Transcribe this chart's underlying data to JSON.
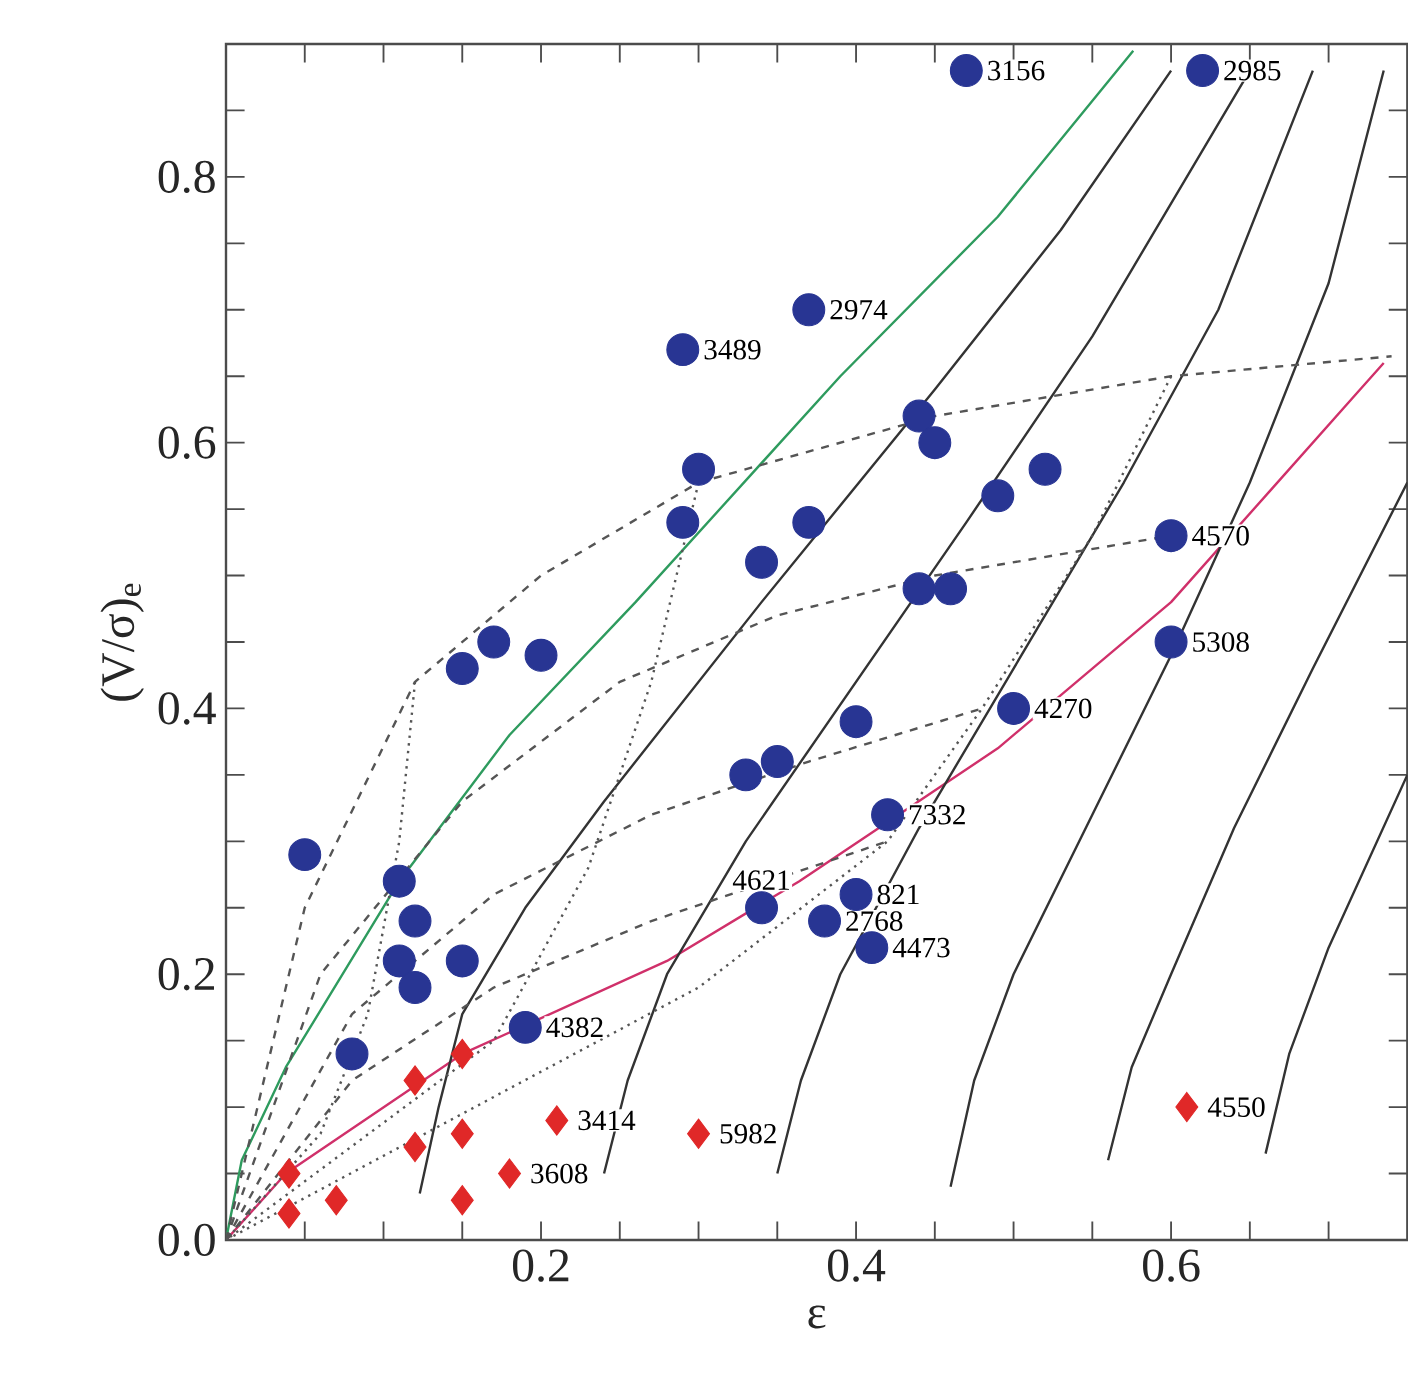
{
  "chart_data": {
    "type": "scatter",
    "xlabel": "ε",
    "ylabel": "(V/σ)$_{e}$",
    "xlim": [
      0,
      0.75
    ],
    "ylim": [
      0,
      0.9
    ],
    "grid": false,
    "xticks": [
      {
        "value": 0.05,
        "label": null
      },
      {
        "value": 0.1,
        "label": null
      },
      {
        "value": 0.15,
        "label": null
      },
      0.2,
      {
        "value": 0.25,
        "label": null
      },
      {
        "value": 0.3,
        "label": null
      },
      {
        "value": 0.35,
        "label": null
      },
      0.4,
      {
        "value": 0.45,
        "label": null
      },
      {
        "value": 0.5,
        "label": null
      },
      {
        "value": 0.55,
        "label": null
      },
      0.6,
      {
        "value": 0.65,
        "label": null
      },
      {
        "value": 0.7,
        "label": null
      }
    ],
    "yticks": [
      {
        "value": 0,
        "label": "0.0"
      },
      {
        "value": 0.05,
        "label": null
      },
      {
        "value": 0.1,
        "label": null
      },
      {
        "value": 0.15,
        "label": null
      },
      0.2,
      {
        "value": 0.25,
        "label": null
      },
      {
        "value": 0.3,
        "label": null
      },
      {
        "value": 0.35,
        "label": null
      },
      0.4,
      {
        "value": 0.45,
        "label": null
      },
      {
        "value": 0.5,
        "label": null
      },
      {
        "value": 0.55,
        "label": null
      },
      0.6,
      {
        "value": 0.65,
        "label": null
      },
      {
        "value": 0.7,
        "label": null
      },
      {
        "value": 0.75,
        "label": null
      },
      0.8,
      {
        "value": 0.85,
        "label": null
      }
    ],
    "series": [
      {
        "type": "line",
        "color": "#2e9b5e",
        "line_style": "solid",
        "marker": "none",
        "x": [
          0,
          0.01,
          0.038,
          0.11,
          0.18,
          0.26,
          0.39,
          0.49,
          0.576
        ],
        "values": [
          0,
          0.06,
          0.13,
          0.27,
          0.38,
          0.48,
          0.65,
          0.77,
          0.895
        ]
      },
      {
        "type": "line",
        "color": "#d0306a",
        "line_style": "solid",
        "marker": "none",
        "x": [
          0,
          0.038,
          0.15,
          0.28,
          0.364,
          0.49,
          0.6,
          0.72,
          0.735
        ],
        "values": [
          0,
          0.05,
          0.14,
          0.21,
          0.27,
          0.37,
          0.48,
          0.64,
          0.66
        ]
      },
      {
        "type": "line",
        "color": "#333333",
        "line_style": "solid",
        "marker": "none",
        "x": [
          0.123,
          0.135,
          0.15,
          0.19,
          0.24,
          0.34,
          0.45,
          0.53,
          0.6
        ],
        "values": [
          0.035,
          0.1,
          0.17,
          0.25,
          0.33,
          0.48,
          0.64,
          0.76,
          0.88
        ]
      },
      {
        "type": "line",
        "color": "#333333",
        "line_style": "solid",
        "marker": "none",
        "x": [
          0.24,
          0.255,
          0.28,
          0.33,
          0.4,
          0.47,
          0.55,
          0.65
        ],
        "values": [
          0.05,
          0.12,
          0.2,
          0.3,
          0.42,
          0.54,
          0.68,
          0.88
        ]
      },
      {
        "type": "line",
        "color": "#333333",
        "line_style": "solid",
        "marker": "none",
        "x": [
          0.35,
          0.365,
          0.39,
          0.44,
          0.5,
          0.57,
          0.63,
          0.69
        ],
        "values": [
          0.05,
          0.12,
          0.2,
          0.31,
          0.43,
          0.57,
          0.7,
          0.88
        ]
      },
      {
        "type": "line",
        "color": "#333333",
        "line_style": "solid",
        "marker": "none",
        "x": [
          0.46,
          0.475,
          0.5,
          0.55,
          0.6,
          0.65,
          0.7,
          0.735
        ],
        "values": [
          0.04,
          0.12,
          0.2,
          0.32,
          0.44,
          0.57,
          0.72,
          0.88
        ]
      },
      {
        "type": "line",
        "color": "#333333",
        "line_style": "solid",
        "marker": "none",
        "x": [
          0.56,
          0.575,
          0.6,
          0.64,
          0.69,
          0.75
        ],
        "values": [
          0.06,
          0.13,
          0.2,
          0.31,
          0.43,
          0.57
        ]
      },
      {
        "type": "line",
        "color": "#333333",
        "line_style": "solid",
        "marker": "none",
        "x": [
          0.66,
          0.675,
          0.7,
          0.75
        ],
        "values": [
          0.065,
          0.14,
          0.22,
          0.35
        ]
      },
      {
        "type": "line",
        "color": "#555555",
        "line_style": "dashed",
        "marker": "none",
        "x": [
          0,
          0.05,
          0.12,
          0.2,
          0.3,
          0.45,
          0.6,
          0.74
        ],
        "values": [
          0,
          0.25,
          0.42,
          0.5,
          0.57,
          0.62,
          0.65,
          0.665
        ]
      },
      {
        "type": "line",
        "color": "#555555",
        "line_style": "dashed",
        "marker": "none",
        "x": [
          0,
          0.06,
          0.15,
          0.25,
          0.35,
          0.45,
          0.6
        ],
        "values": [
          0,
          0.2,
          0.33,
          0.42,
          0.47,
          0.5,
          0.53
        ]
      },
      {
        "type": "line",
        "color": "#555555",
        "line_style": "dashed",
        "marker": "none",
        "x": [
          0,
          0.08,
          0.17,
          0.27,
          0.37,
          0.48
        ],
        "values": [
          0,
          0.17,
          0.26,
          0.32,
          0.36,
          0.4
        ]
      },
      {
        "type": "line",
        "color": "#555555",
        "line_style": "dashed",
        "marker": "none",
        "x": [
          0,
          0.08,
          0.17,
          0.27,
          0.37,
          0.42
        ],
        "values": [
          0,
          0.12,
          0.19,
          0.24,
          0.28,
          0.3
        ]
      },
      {
        "type": "line",
        "color": "#555555",
        "line_style": "dotted",
        "marker": "none",
        "x": [
          0.12,
          0.11,
          0.09,
          0.06,
          0
        ],
        "values": [
          0.42,
          0.3,
          0.17,
          0.08,
          0
        ]
      },
      {
        "type": "line",
        "color": "#555555",
        "line_style": "dotted",
        "marker": "none",
        "x": [
          0.3,
          0.27,
          0.23,
          0.17,
          0
        ],
        "values": [
          0.57,
          0.42,
          0.28,
          0.15,
          0
        ]
      },
      {
        "type": "line",
        "color": "#555555",
        "line_style": "dotted",
        "marker": "none",
        "x": [
          0.6,
          0.55,
          0.48,
          0.42,
          0.3,
          0
        ],
        "values": [
          0.65,
          0.53,
          0.4,
          0.3,
          0.19,
          0
        ]
      },
      {
        "color": "#283593",
        "marker": "circle",
        "x": [
          0.47,
          0.62,
          0.37,
          0.29,
          0.44,
          0.45,
          0.3,
          0.29,
          0.37,
          0.49,
          0.52,
          0.34,
          0.44,
          0.46,
          0.6,
          0.6,
          0.17,
          0.15,
          0.2,
          0.5,
          0.4,
          0.33,
          0.35,
          0.42,
          0.05,
          0.11,
          0.12,
          0.34,
          0.4,
          0.38,
          0.41,
          0.11,
          0.12,
          0.15,
          0.19,
          0.08
        ],
        "values": [
          0.88,
          0.88,
          0.7,
          0.67,
          0.62,
          0.6,
          0.58,
          0.54,
          0.54,
          0.56,
          0.58,
          0.51,
          0.49,
          0.49,
          0.53,
          0.45,
          0.45,
          0.43,
          0.44,
          0.4,
          0.39,
          0.35,
          0.36,
          0.32,
          0.29,
          0.27,
          0.24,
          0.25,
          0.26,
          0.24,
          0.22,
          0.21,
          0.19,
          0.21,
          0.16,
          0.14
        ]
      },
      {
        "color": "#e02828",
        "marker": "diamond",
        "x": [
          0.15,
          0.12,
          0.21,
          0.3,
          0.12,
          0.15,
          0.18,
          0.04,
          0.07,
          0.04,
          0.15,
          0.61
        ],
        "values": [
          0.14,
          0.12,
          0.09,
          0.08,
          0.07,
          0.08,
          0.05,
          0.05,
          0.03,
          0.02,
          0.03,
          0.1
        ]
      }
    ],
    "annotations": [
      {
        "text": "3156",
        "x": 0.47,
        "y": 0.88
      },
      {
        "text": "2985",
        "x": 0.62,
        "y": 0.88
      },
      {
        "text": "2974",
        "x": 0.37,
        "y": 0.7
      },
      {
        "text": "3489",
        "x": 0.29,
        "y": 0.67
      },
      {
        "text": "4570",
        "x": 0.6,
        "y": 0.53
      },
      {
        "text": "5308",
        "x": 0.6,
        "y": 0.45
      },
      {
        "text": "4270",
        "x": 0.5,
        "y": 0.4
      },
      {
        "text": "7332",
        "x": 0.42,
        "y": 0.32
      },
      {
        "text": "4621",
        "x": 0.34,
        "y": 0.25
      },
      {
        "text": "821",
        "x": 0.4,
        "y": 0.26
      },
      {
        "text": "2768",
        "x": 0.38,
        "y": 0.24
      },
      {
        "text": "4473",
        "x": 0.41,
        "y": 0.22
      },
      {
        "text": "4382",
        "x": 0.19,
        "y": 0.16
      },
      {
        "text": "3414",
        "x": 0.21,
        "y": 0.09
      },
      {
        "text": "5982",
        "x": 0.3,
        "y": 0.08
      },
      {
        "text": "3608",
        "x": 0.18,
        "y": 0.05
      },
      {
        "text": "4550",
        "x": 0.61,
        "y": 0.1
      }
    ]
  }
}
